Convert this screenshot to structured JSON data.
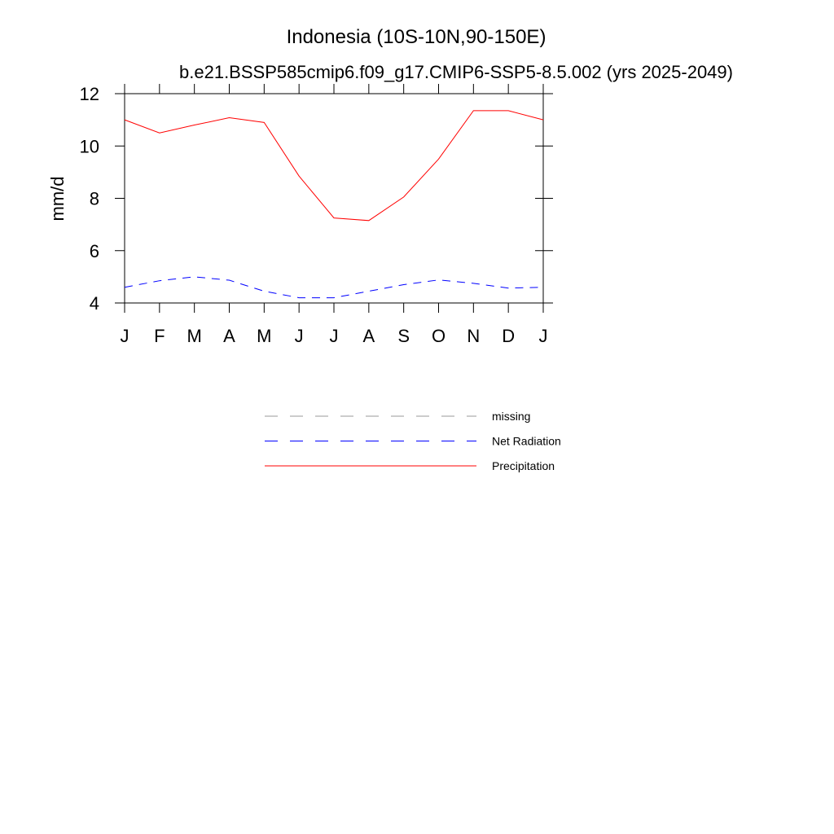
{
  "chart_data": {
    "type": "line",
    "title": "Indonesia (10S-10N,90-150E)",
    "subtitle": "b.e21.BSSP585cmip6.f09_g17.CMIP6-SSP5-8.5.002 (yrs 2025-2049)",
    "y_label": "mm/d",
    "categories": [
      "J",
      "F",
      "M",
      "A",
      "M",
      "J",
      "J",
      "A",
      "S",
      "O",
      "N",
      "D",
      "J"
    ],
    "ylim": [
      4,
      12
    ],
    "yticks": [
      4,
      6,
      8,
      10,
      12
    ],
    "series": [
      {
        "name": "missing",
        "color": "#999999",
        "line_style": "dashed",
        "values": [
          null,
          null,
          null,
          null,
          null,
          null,
          null,
          null,
          null,
          null,
          null,
          null,
          null
        ]
      },
      {
        "name": "Net Radiation",
        "color": "#0000ff",
        "line_style": "dashed",
        "values": [
          4.6,
          4.85,
          5.0,
          4.87,
          4.45,
          4.2,
          4.2,
          4.45,
          4.7,
          4.88,
          4.75,
          4.57,
          4.6
        ]
      },
      {
        "name": "Precipitation",
        "color": "#ff0000",
        "line_style": "solid",
        "values": [
          11.0,
          10.5,
          10.8,
          11.08,
          10.9,
          8.85,
          7.25,
          7.15,
          8.05,
          9.5,
          11.35,
          11.35,
          11.0
        ]
      }
    ]
  }
}
